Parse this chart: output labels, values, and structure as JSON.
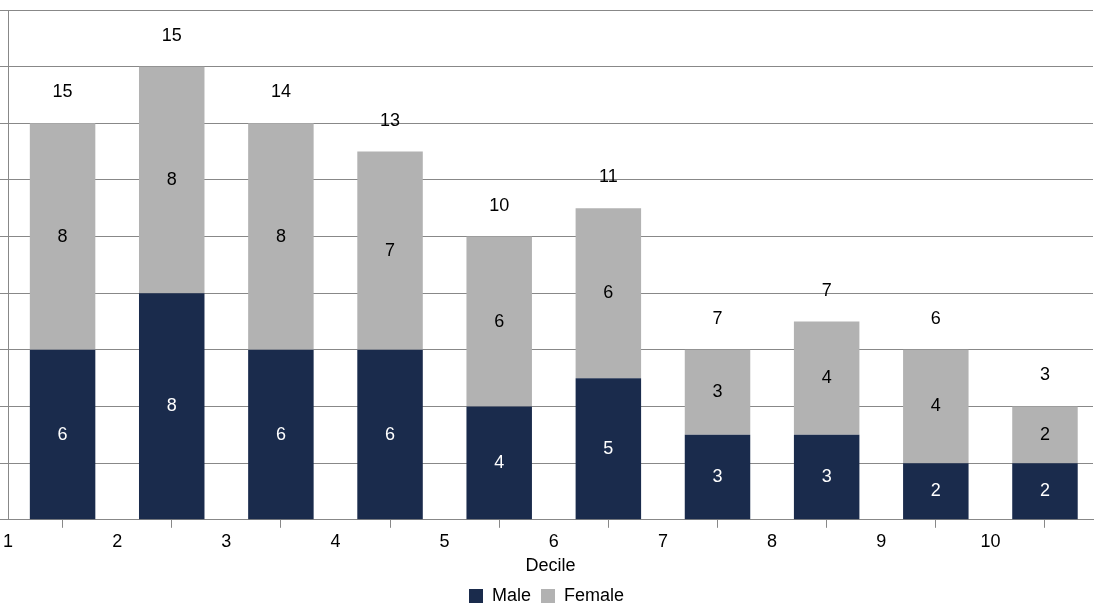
{
  "chart_data": {
    "type": "bar",
    "stacked": true,
    "xlabel": "Decile",
    "x": [
      1.5,
      2.5,
      3.5,
      4.5,
      5.5,
      6.5,
      7.5,
      8.5,
      9.5,
      10.5
    ],
    "xlim": [
      1,
      10.94
    ],
    "xticks": [
      1,
      2,
      3,
      4,
      5,
      6,
      7,
      8,
      9,
      10
    ],
    "ylim": [
      0,
      18
    ],
    "yticks": [
      {
        "value": 0,
        "label": null
      },
      {
        "value": 2,
        "label": null
      },
      {
        "value": 4,
        "label": null
      },
      {
        "value": 6,
        "label": null
      },
      {
        "value": 8,
        "label": null
      },
      {
        "value": 10,
        "label": null
      },
      {
        "value": 12,
        "label": null
      },
      {
        "value": 14,
        "label": null
      },
      {
        "value": 16,
        "label": null
      },
      {
        "value": 18,
        "label": null
      }
    ],
    "tick_labels": "x",
    "grid": "y",
    "legend": "bottom",
    "data_labels": true,
    "series": [
      {
        "name": "Male",
        "color": "#1a2b4c",
        "values": [
          6,
          8,
          6,
          6,
          4,
          5,
          3,
          3,
          2,
          2
        ]
      },
      {
        "name": "Female",
        "color": "#b2b2b2",
        "values": [
          8,
          8,
          8,
          7,
          6,
          6,
          3,
          4,
          4,
          2
        ]
      }
    ],
    "totals": [
      "15",
      "15",
      "14",
      "13",
      "10",
      "11",
      "7",
      "7",
      "6",
      "3"
    ]
  }
}
